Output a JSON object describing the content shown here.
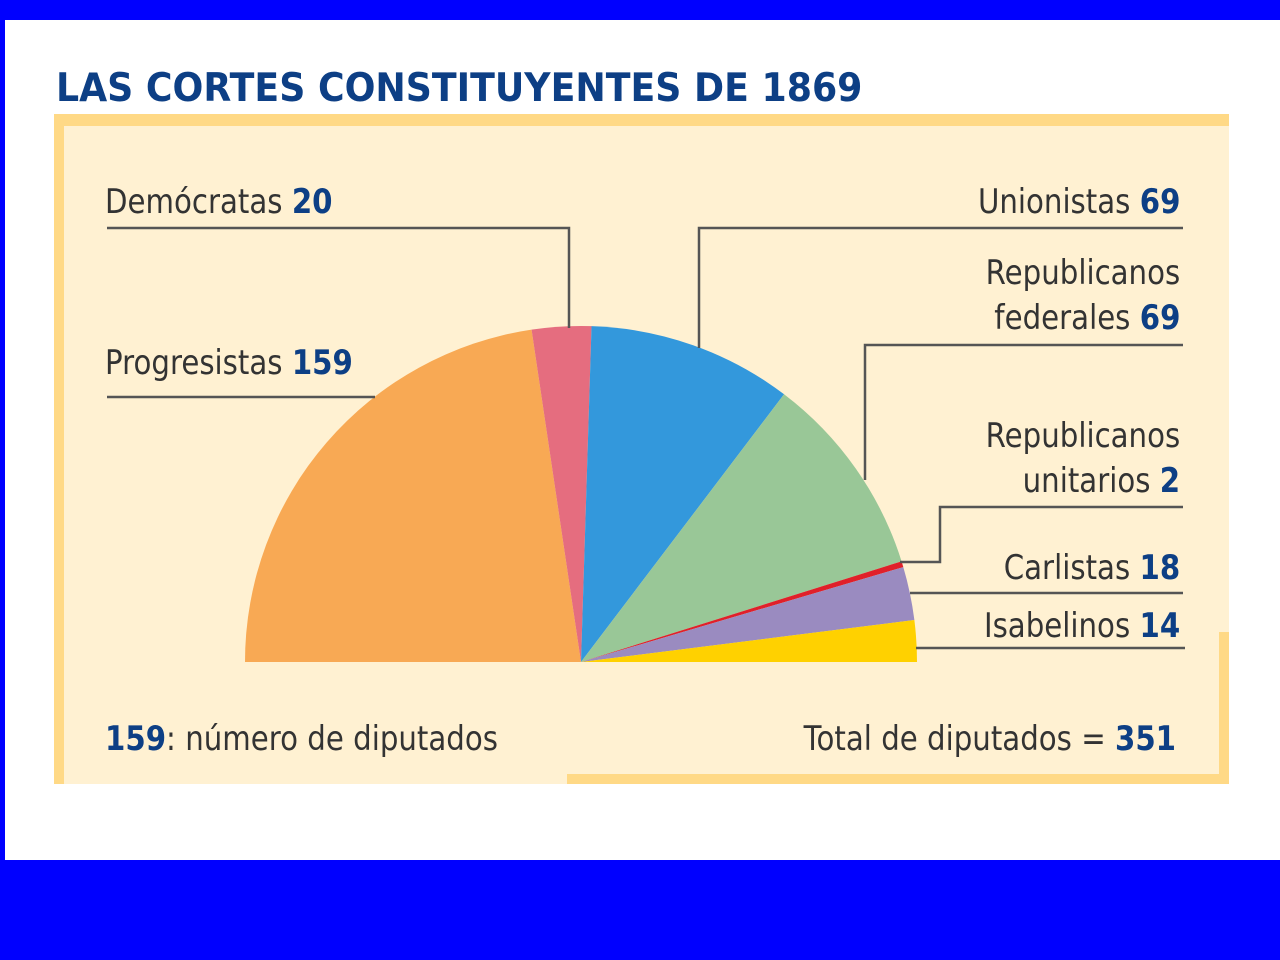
{
  "title": "LAS CORTES CONSTITUYENTES DE 1869",
  "colors": {
    "outer_background": "#0000ff",
    "page_background": "#ffffff",
    "panel_background": "#fff1d2",
    "frame": "#ffd986",
    "title": "#0d3f85",
    "number": "#0d3f85",
    "text": "#333333",
    "leader_line": "#555555"
  },
  "labels": {
    "democratas": {
      "name": "Demócratas",
      "value": "20"
    },
    "progresistas": {
      "name": "Progresistas",
      "value": "159"
    },
    "unionistas": {
      "name": "Unionistas",
      "value": "69"
    },
    "rep_federales": {
      "line1": "Republicanos",
      "name": "federales",
      "value": "69"
    },
    "rep_unitarios": {
      "line1": "Republicanos",
      "name": "unitarios",
      "value": "2"
    },
    "carlistas": {
      "name": "Carlistas",
      "value": "18"
    },
    "isabelinos": {
      "name": "Isabelinos",
      "value": "14"
    }
  },
  "footer": {
    "legend_number": "159",
    "legend_text": ": número de diputados",
    "total_text": "Total de diputados = ",
    "total_value": "351"
  },
  "chart_data": {
    "type": "pie",
    "subtype": "semicircle (parliament half-pie)",
    "title": "LAS CORTES CONSTITUYENTES DE 1869",
    "categories": [
      "Progresistas",
      "Demócratas",
      "Unionistas",
      "Republicanos federales",
      "Republicanos unitarios",
      "Carlistas",
      "Isabelinos"
    ],
    "values": [
      159,
      20,
      69,
      69,
      2,
      18,
      14
    ],
    "colors": [
      "#f8a954",
      "#e56d7f",
      "#3398dc",
      "#99c797",
      "#e0202a",
      "#9a8bc0",
      "#ffd100"
    ],
    "total": 351,
    "unit": "diputados",
    "annotations": [
      "159: número de diputados",
      "Total de diputados = 351"
    ],
    "legend_position": "leader-line labels around the pie"
  }
}
